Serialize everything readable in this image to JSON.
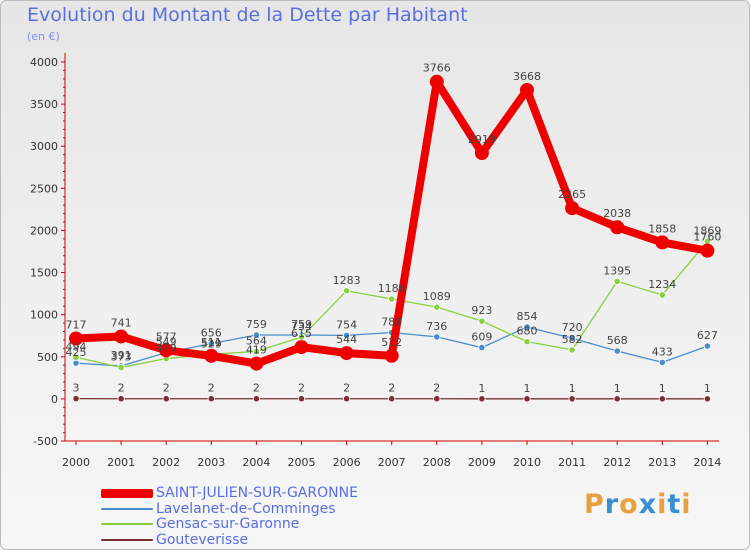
{
  "header": {
    "title": "Evolution du Montant de la Dette par Habitant",
    "subtitle": "(en €)"
  },
  "logo": {
    "letters": [
      "P",
      "r",
      "o",
      "x",
      "i",
      "t",
      "i"
    ],
    "colors": [
      "#e8a040",
      "#3a8fd0",
      "#e8a040",
      "#3a8fd0",
      "#e8a040",
      "#3a8fd0",
      "#e8a040"
    ]
  },
  "chart_data": {
    "type": "line",
    "title": "Evolution du Montant de la Dette par Habitant",
    "ylabel": "(en €)",
    "xlabel": "",
    "ylim": [
      -500,
      4000
    ],
    "yticks": [
      -500,
      0,
      500,
      1000,
      1500,
      2000,
      2500,
      3000,
      3500,
      4000
    ],
    "grid": false,
    "legend_position": "bottom-left",
    "x": [
      "2000",
      "2001",
      "2002",
      "2003",
      "2004",
      "2005",
      "2006",
      "2007",
      "2008",
      "2009",
      "2010",
      "2011",
      "2012",
      "2013",
      "2014"
    ],
    "series": [
      {
        "name": "SAINT-JULIEN-SUR-GARONNE",
        "color": "#ee0000",
        "values": [
          717,
          741,
          577,
          511,
          419,
          615,
          544,
          512,
          3766,
          2919,
          3668,
          2265,
          2038,
          1858,
          1760
        ],
        "labels": [
          "717",
          "741",
          "577",
          "511",
          "419",
          "615",
          "544",
          "512",
          "3766",
          "2919",
          "3668",
          "2265",
          "2038",
          "1858",
          "1760"
        ]
      },
      {
        "name": "Lavelanet-de-Comminges",
        "color": "#4a8ccc",
        "values": [
          425,
          391,
          549,
          656,
          759,
          759,
          754,
          788,
          736,
          609,
          854,
          720,
          568,
          433,
          627
        ],
        "labels": [
          "425",
          "391",
          "549",
          "656",
          "759",
          "759",
          "754",
          "788",
          "736",
          "609",
          "854",
          "720",
          "568",
          "433",
          "627"
        ]
      },
      {
        "name": "Gensac-sur-Garonne",
        "color": "#88d040",
        "values": [
          494,
          373,
          479,
          529,
          564,
          734,
          1283,
          1186,
          1089,
          923,
          680,
          582,
          1395,
          1234,
          1869
        ],
        "labels": [
          "494",
          "373",
          "479",
          "529",
          "564",
          "734",
          "1283",
          "1186",
          "1089",
          "923",
          "680",
          "582",
          "1395",
          "1234",
          "1869"
        ]
      },
      {
        "name": "Gouteverisse",
        "color": "#7a3030",
        "values": [
          3,
          2,
          2,
          2,
          2,
          2,
          2,
          2,
          2,
          1,
          1,
          1,
          1,
          1,
          1
        ],
        "labels": [
          "3",
          "2",
          "2",
          "2",
          "2",
          "2",
          "2",
          "2",
          "2",
          "1",
          "1",
          "1",
          "1",
          "1",
          "1"
        ]
      }
    ]
  }
}
